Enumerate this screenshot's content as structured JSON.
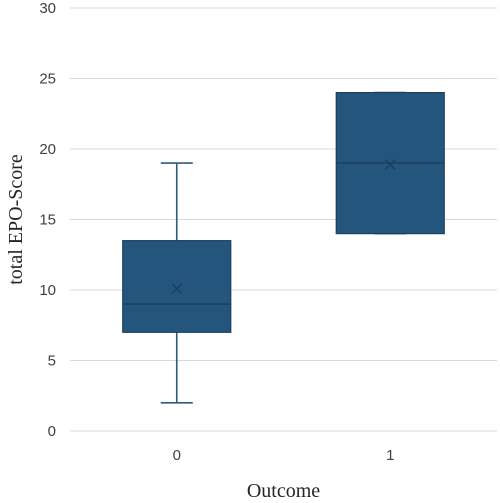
{
  "chart_data": {
    "type": "box",
    "title": "",
    "xlabel": "Outcome",
    "ylabel": "total EPO-Score",
    "ylim": [
      0,
      30
    ],
    "yticks": [
      0,
      5,
      10,
      15,
      20,
      25,
      30
    ],
    "grid": "horizontal",
    "categories": [
      "0",
      "1"
    ],
    "boxes": [
      {
        "category": "0",
        "min": 2,
        "q1": 7,
        "median": 9,
        "q3": 13.5,
        "max": 19,
        "mean": 10.1
      },
      {
        "category": "1",
        "min": 14,
        "q1": 14,
        "median": 19,
        "q3": 24,
        "max": 24,
        "mean": 18.9
      }
    ],
    "colors": {
      "box_fill": "#24557c",
      "box_line": "#1b3f5e",
      "whisker": "#2e5b7e",
      "grid": "#d9d9d9"
    }
  }
}
